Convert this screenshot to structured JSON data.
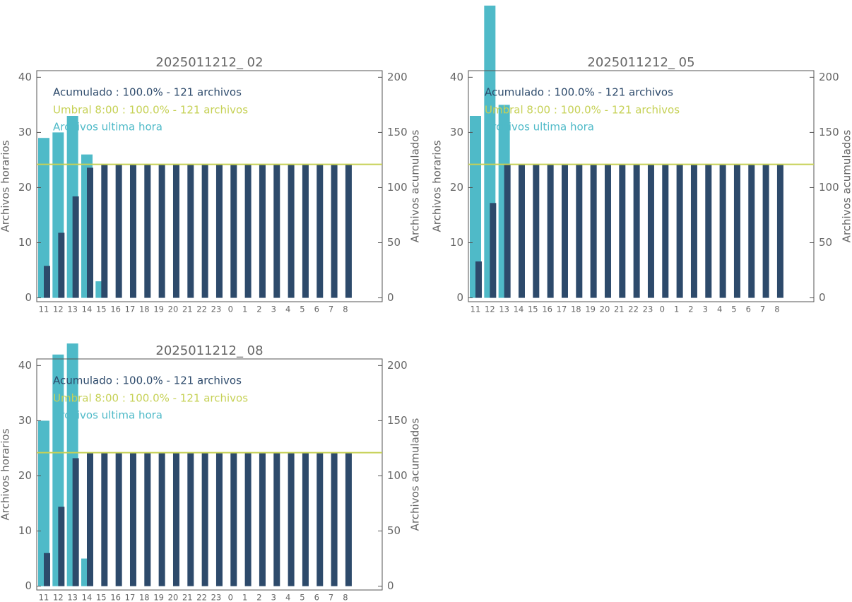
{
  "chart_data": [
    {
      "type": "bar",
      "title": "2025011212_ 02",
      "categories": [
        "11",
        "12",
        "13",
        "14",
        "15",
        "16",
        "17",
        "18",
        "19",
        "20",
        "21",
        "22",
        "23",
        "0",
        "1",
        "2",
        "3",
        "4",
        "5",
        "6",
        "7",
        "8"
      ],
      "series": [
        {
          "name": "Acumulado : 100.0% - 121 archivos",
          "color": "#2d4a6b",
          "axis": "y2",
          "values": [
            29,
            59,
            92,
            118,
            121,
            121,
            121,
            121,
            121,
            121,
            121,
            121,
            121,
            121,
            121,
            121,
            121,
            121,
            121,
            121,
            121,
            121
          ]
        },
        {
          "name": "Archivos ultima hora",
          "color": "#4fbac8",
          "values": [
            29,
            30,
            33,
            26,
            3,
            0,
            0,
            0,
            0,
            0,
            0,
            0,
            0,
            0,
            0,
            0,
            0,
            0,
            0,
            0,
            0,
            0
          ]
        }
      ],
      "threshold": {
        "name": "Umbral 8:00 : 100.0% - 121 archivos",
        "color": "#c6d156",
        "value": 121,
        "axis": "y2"
      },
      "ylabel": "Archivos horarios",
      "y2label": "Archivos acumulados",
      "ylim": [
        -0.7,
        41.2
      ],
      "yticks": [
        0,
        10,
        20,
        30,
        40
      ],
      "y2lim": [
        -3.5,
        206
      ],
      "y2ticks": [
        0,
        50,
        100,
        150,
        200
      ]
    },
    {
      "type": "bar",
      "title": "2025011212_ 05",
      "categories": [
        "11",
        "12",
        "13",
        "14",
        "15",
        "16",
        "17",
        "18",
        "19",
        "20",
        "21",
        "22",
        "23",
        "0",
        "1",
        "2",
        "3",
        "4",
        "5",
        "6",
        "7",
        "8"
      ],
      "series": [
        {
          "name": "Acumulado : 100.0% - 121 archivos",
          "color": "#2d4a6b",
          "axis": "y2",
          "values": [
            33,
            86,
            121,
            121,
            121,
            121,
            121,
            121,
            121,
            121,
            121,
            121,
            121,
            121,
            121,
            121,
            121,
            121,
            121,
            121,
            121,
            121
          ]
        },
        {
          "name": "Archivos ultima hora",
          "color": "#4fbac8",
          "values": [
            33,
            53,
            35,
            0,
            0,
            0,
            0,
            0,
            0,
            0,
            0,
            0,
            0,
            0,
            0,
            0,
            0,
            0,
            0,
            0,
            0,
            0
          ]
        }
      ],
      "threshold": {
        "name": "Umbral 8:00 : 100.0% - 121 archivos",
        "color": "#c6d156",
        "value": 121,
        "axis": "y2"
      },
      "ylabel": "Archivos horarios",
      "y2label": "Archivos acumulados",
      "ylim": [
        -0.7,
        41.2
      ],
      "yticks": [
        0,
        10,
        20,
        30,
        40
      ],
      "y2lim": [
        -3.5,
        206
      ],
      "y2ticks": [
        0,
        50,
        100,
        150,
        200
      ]
    },
    {
      "type": "bar",
      "title": "2025011212_ 08",
      "categories": [
        "11",
        "12",
        "13",
        "14",
        "15",
        "16",
        "17",
        "18",
        "19",
        "20",
        "21",
        "22",
        "23",
        "0",
        "1",
        "2",
        "3",
        "4",
        "5",
        "6",
        "7",
        "8"
      ],
      "series": [
        {
          "name": "Acumulado : 100.0% - 121 archivos",
          "color": "#2d4a6b",
          "axis": "y2",
          "values": [
            30,
            72,
            116,
            121,
            121,
            121,
            121,
            121,
            121,
            121,
            121,
            121,
            121,
            121,
            121,
            121,
            121,
            121,
            121,
            121,
            121,
            121
          ]
        },
        {
          "name": "Archivos ultima hora",
          "color": "#4fbac8",
          "values": [
            30,
            42,
            44,
            5,
            0,
            0,
            0,
            0,
            0,
            0,
            0,
            0,
            0,
            0,
            0,
            0,
            0,
            0,
            0,
            0,
            0,
            0
          ]
        }
      ],
      "threshold": {
        "name": "Umbral 8:00 : 100.0% - 121 archivos",
        "color": "#c6d156",
        "value": 121,
        "axis": "y2"
      },
      "ylabel": "Archivos horarios",
      "y2label": "Archivos acumulados",
      "ylim": [
        -0.7,
        41.2
      ],
      "yticks": [
        0,
        10,
        20,
        30,
        40
      ],
      "y2lim": [
        -3.5,
        206
      ],
      "y2ticks": [
        0,
        50,
        100,
        150,
        200
      ]
    }
  ]
}
